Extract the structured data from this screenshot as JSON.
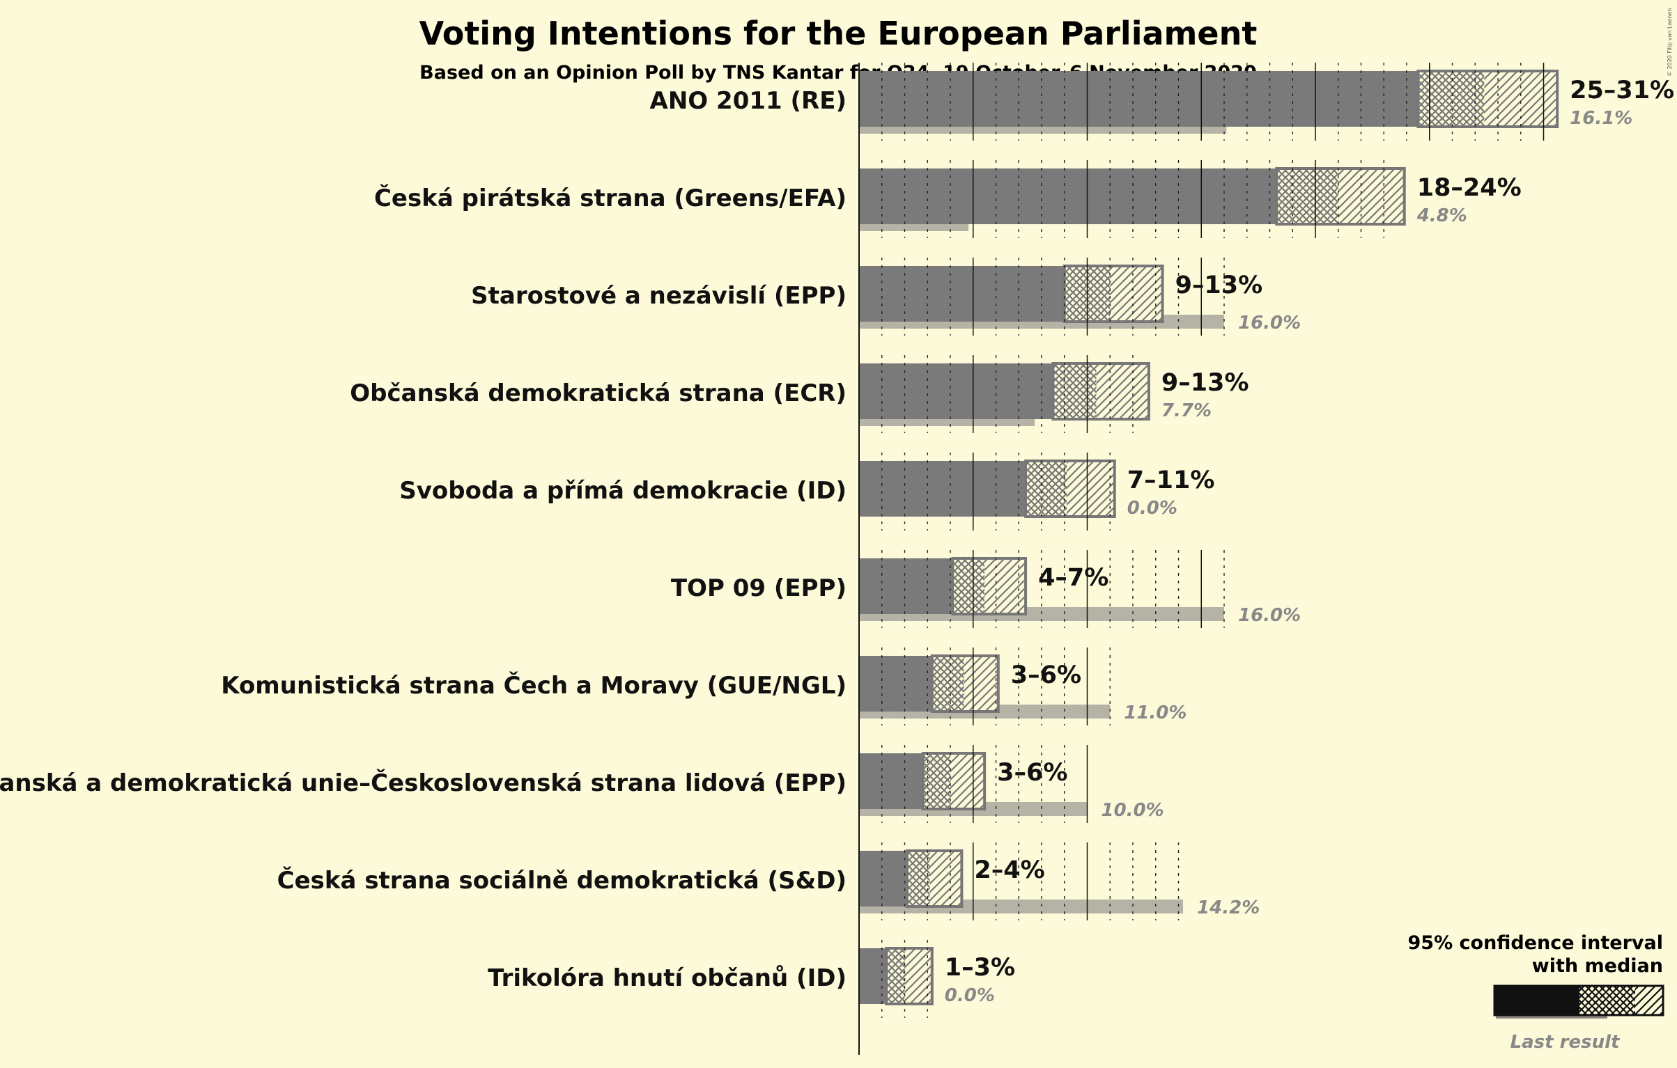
{
  "chart_data": {
    "type": "bar",
    "title": "Voting Intentions for the European Parliament",
    "subtitle": "Based on an Opinion Poll by TNS Kantar for O24, 19 October–6 November 2020",
    "copyright": "© 2020 Filip van Laenen",
    "xlabel": "",
    "ylabel": "",
    "grid": true,
    "legend": {
      "position": "bottom-right",
      "ci_label_line1": "95% confidence interval",
      "ci_label_line2": "with median",
      "last_label": "Last result"
    },
    "parties": [
      {
        "name": "ANO 2011 (RE)",
        "ci_label": "25–31%",
        "low": 24.5,
        "median": 27.4,
        "high": 30.6,
        "last": 16.1,
        "last_label": "16.1%"
      },
      {
        "name": "Česká pirátská strana (Greens/EFA)",
        "ci_label": "18–24%",
        "low": 18.3,
        "median": 21.0,
        "high": 23.9,
        "last": 4.8,
        "last_label": "4.8%"
      },
      {
        "name": "Starostové a nezávislí (EPP)",
        "ci_label": "9–13%",
        "low": 9.0,
        "median": 11.0,
        "high": 13.3,
        "last": 16.0,
        "last_label": "16.0%"
      },
      {
        "name": "Občanská demokratická strana (ECR)",
        "ci_label": "9–13%",
        "low": 8.5,
        "median": 10.4,
        "high": 12.7,
        "last": 7.7,
        "last_label": "7.7%"
      },
      {
        "name": "Svoboda a přímá demokracie (ID)",
        "ci_label": "7–11%",
        "low": 7.3,
        "median": 9.1,
        "high": 11.2,
        "last": 0.0,
        "last_label": "0.0%"
      },
      {
        "name": "TOP 09 (EPP)",
        "ci_label": "4–7%",
        "low": 4.1,
        "median": 5.5,
        "high": 7.3,
        "last": 16.0,
        "last_label": "16.0%"
      },
      {
        "name": "Komunistická strana Čech a Moravy (GUE/NGL)",
        "ci_label": "3–6%",
        "low": 3.2,
        "median": 4.6,
        "high": 6.1,
        "last": 11.0,
        "last_label": "11.0%"
      },
      {
        "name": "Křesťanská a demokratická unie–Československá strana lidová (EPP)",
        "ci_label": "3–6%",
        "low": 2.8,
        "median": 4.0,
        "high": 5.5,
        "last": 10.0,
        "last_label": "10.0%"
      },
      {
        "name": "Česká strana sociálně demokratická (S&D)",
        "ci_label": "2–4%",
        "low": 2.1,
        "median": 3.1,
        "high": 4.5,
        "last": 14.2,
        "last_label": "14.2%"
      },
      {
        "name": "Trikolóra hnutí občanů (ID)",
        "ci_label": "1–3%",
        "low": 1.2,
        "median": 2.0,
        "high": 3.2,
        "last": 0.0,
        "last_label": "0.0%"
      }
    ],
    "colors": {
      "background": "#FDFAD9",
      "bar": "#7A7A7A",
      "last_result": "#B5B3A5",
      "ci_border": "#777777",
      "legend_bar": "#111111"
    }
  }
}
